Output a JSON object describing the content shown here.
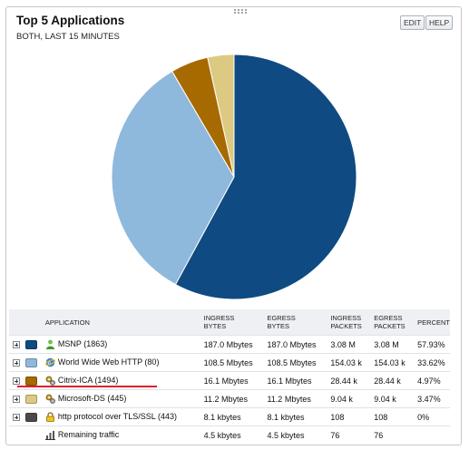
{
  "panel": {
    "title": "Top 5 Applications",
    "subtitle": "BOTH, LAST 15 MINUTES",
    "edit_label": "EDIT",
    "help_label": "HELP"
  },
  "chart_data": {
    "type": "pie",
    "slices": [
      {
        "name": "MSNP (1863)",
        "value": 57.93,
        "color": "#0f4a82"
      },
      {
        "name": "World Wide Web HTTP (80)",
        "value": 33.62,
        "color": "#8fb9dc"
      },
      {
        "name": "Citrix-ICA (1494)",
        "value": 4.97,
        "color": "#a66a00"
      },
      {
        "name": "Microsoft-DS (445)",
        "value": 3.47,
        "color": "#dcca82"
      },
      {
        "name": "http protocol over TLS/SSL (443)",
        "value": 0,
        "color": "#4a4a4a"
      }
    ]
  },
  "table": {
    "headers": {
      "application": "APPLICATION",
      "ingress_bytes": [
        "INGRESS",
        "BYTES"
      ],
      "egress_bytes": [
        "EGRESS",
        "BYTES"
      ],
      "ingress_packets": [
        "INGRESS",
        "PACKETS"
      ],
      "egress_packets": [
        "EGRESS",
        "PACKETS"
      ],
      "percent": "PERCENT"
    },
    "rows": [
      {
        "app": "MSNP (1863)",
        "icon": "user-icon",
        "color": "#0f4a82",
        "in_bytes": "187.0 Mbytes",
        "eg_bytes": "187.0 Mbytes",
        "in_pk": "3.08 M",
        "eg_pk": "3.08 M",
        "pct": "57.93%"
      },
      {
        "app": "World Wide Web HTTP (80)",
        "icon": "globe-icon",
        "color": "#8fb9dc",
        "in_bytes": "108.5 Mbytes",
        "eg_bytes": "108.5 Mbytes",
        "in_pk": "154.03 k",
        "eg_pk": "154.03 k",
        "pct": "33.62%"
      },
      {
        "app": "Citrix-ICA (1494)",
        "icon": "gears-icon",
        "color": "#a66a00",
        "in_bytes": "16.1 Mbytes",
        "eg_bytes": "16.1 Mbytes",
        "in_pk": "28.44 k",
        "eg_pk": "28.44 k",
        "pct": "4.97%"
      },
      {
        "app": "Microsoft-DS (445)",
        "icon": "gears-icon",
        "color": "#dcca82",
        "in_bytes": "11.2 Mbytes",
        "eg_bytes": "11.2 Mbytes",
        "in_pk": "9.04 k",
        "eg_pk": "9.04 k",
        "pct": "3.47%"
      },
      {
        "app": "http protocol over TLS/SSL (443)",
        "icon": "lock-icon",
        "color": "#4a4a4a",
        "in_bytes": "8.1 kbytes",
        "eg_bytes": "8.1 kbytes",
        "in_pk": "108",
        "eg_pk": "108",
        "pct": "0%"
      }
    ],
    "remaining": {
      "app": "Remaining traffic",
      "icon": "bar-chart-icon",
      "in_bytes": "4.5 kbytes",
      "eg_bytes": "4.5 kbytes",
      "in_pk": "76",
      "eg_pk": "76"
    }
  }
}
